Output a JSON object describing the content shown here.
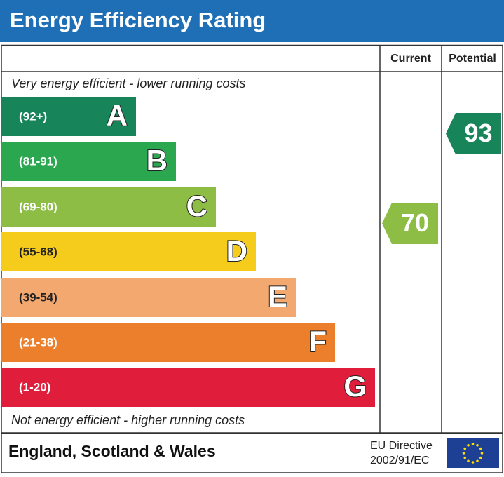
{
  "header": {
    "title": "Energy Efficiency Rating"
  },
  "columns": {
    "current": "Current",
    "potential": "Potential"
  },
  "top_note": "Very energy efficient - lower running costs",
  "bottom_note": "Not energy efficient - higher running costs",
  "bands": [
    {
      "range": "(92+)",
      "letter": "A",
      "color": "#17845a"
    },
    {
      "range": "(81-91)",
      "letter": "B",
      "color": "#2ba84f"
    },
    {
      "range": "(69-80)",
      "letter": "C",
      "color": "#8dbd45"
    },
    {
      "range": "(55-68)",
      "letter": "D",
      "color": "#f5cc1b"
    },
    {
      "range": "(39-54)",
      "letter": "E",
      "color": "#f2a86e"
    },
    {
      "range": "(21-38)",
      "letter": "F",
      "color": "#ec7f2b"
    },
    {
      "range": "(1-20)",
      "letter": "G",
      "color": "#e01e3c"
    }
  ],
  "current": {
    "rating": "70",
    "color": "#8dbd45"
  },
  "potential": {
    "rating": "93",
    "color": "#17845a"
  },
  "footer": {
    "region": "England, Scotland & Wales",
    "directive_line1": "EU Directive",
    "directive_line2": "2002/91/EC"
  }
}
